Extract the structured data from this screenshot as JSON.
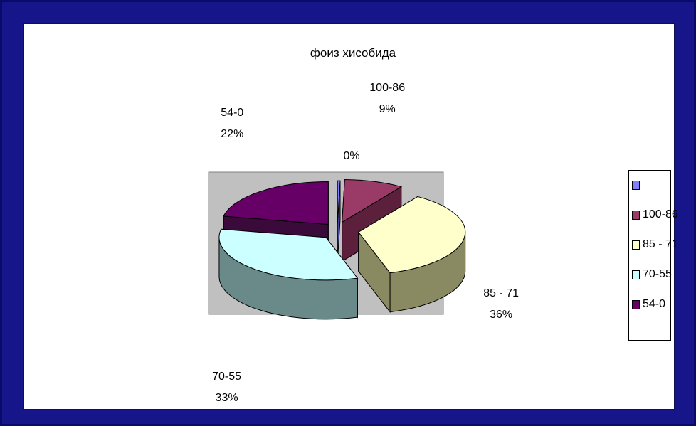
{
  "chart_data": {
    "type": "pie",
    "title": "фоиз хисобида",
    "slices": [
      {
        "label": "",
        "legend": "",
        "percent_label": "0%",
        "value": 0.4,
        "color": "#7f7fff",
        "side_color": "#4a4aa0"
      },
      {
        "label": "100-86",
        "legend": "100-86",
        "percent_label": "9%",
        "value": 9,
        "color": "#9a3a66",
        "side_color": "#5c1f3c"
      },
      {
        "label": "85 - 71",
        "legend": "85 - 71",
        "percent_label": "36%",
        "value": 36,
        "color": "#ffffcc",
        "side_color": "#8a8a62"
      },
      {
        "label": "70-55",
        "legend": "70-55",
        "percent_label": "33%",
        "value": 33,
        "color": "#ccffff",
        "side_color": "#6a8a8a"
      },
      {
        "label": "54-0",
        "legend": "54-0",
        "percent_label": "22%",
        "value": 22,
        "color": "#660066",
        "side_color": "#3a0a3a"
      }
    ],
    "legend_placement": "right",
    "plot_area_color": "#c0c0c0"
  }
}
